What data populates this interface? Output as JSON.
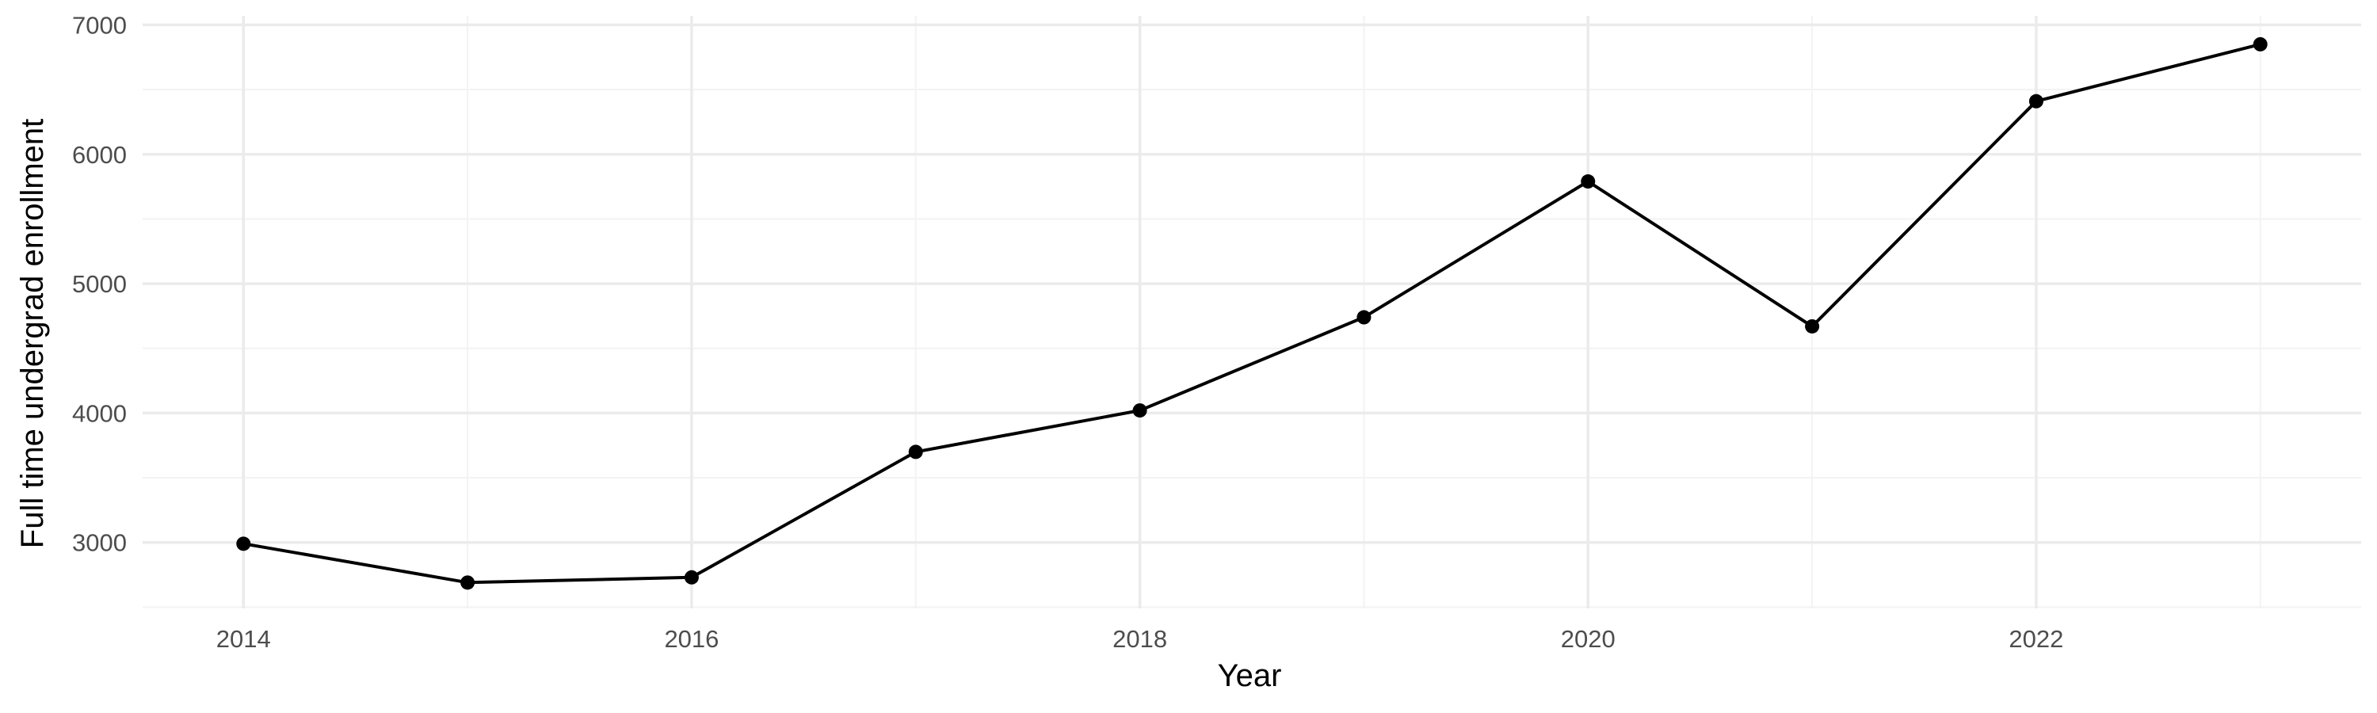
{
  "chart_data": {
    "type": "line",
    "title": "",
    "xlabel": "Year",
    "ylabel": "Full time undergrad enrollment",
    "x": [
      2014,
      2015,
      2016,
      2017,
      2018,
      2019,
      2020,
      2021,
      2022,
      2023
    ],
    "series": [
      {
        "values": [
          2990,
          2690,
          2730,
          3700,
          4020,
          4740,
          5790,
          4670,
          6410,
          6850
        ]
      }
    ],
    "xlim": [
      2013.55,
      2023.45
    ],
    "ylim": [
      2490,
      7070
    ],
    "xticks": [
      2014,
      2016,
      2018,
      2020,
      2022
    ],
    "xtick_labels": [
      "2014",
      "2016",
      "2018",
      "2020",
      "2022"
    ],
    "yticks": [
      3000,
      4000,
      5000,
      6000,
      7000
    ],
    "ytick_labels": [
      "3000",
      "4000",
      "5000",
      "6000",
      "7000"
    ],
    "grid": true,
    "legend": "none",
    "colors": {
      "line": "#000000",
      "grid": "#ebebeb",
      "tick_text": "#4d4d4d"
    }
  }
}
